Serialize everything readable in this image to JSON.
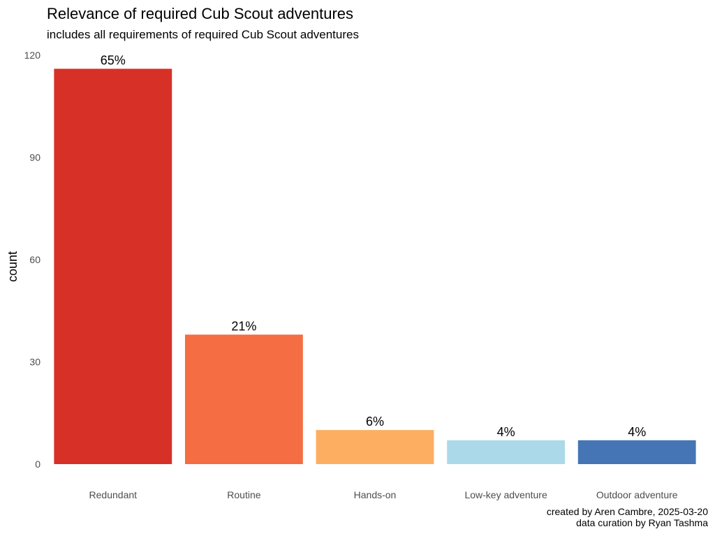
{
  "chart_data": {
    "type": "bar",
    "title": "Relevance of required Cub Scout adventures",
    "subtitle": "includes all requirements of required Cub Scout adventures",
    "xlabel": "",
    "ylabel": "count",
    "categories": [
      "Redundant",
      "Routine",
      "Hands-on",
      "Low-key adventure",
      "Outdoor adventure"
    ],
    "values": [
      116,
      38,
      10,
      7,
      7
    ],
    "data_labels": [
      "65%",
      "21%",
      "6%",
      "4%",
      "4%"
    ],
    "colors": [
      "#d73027",
      "#f46d43",
      "#fdae61",
      "#abd9e9",
      "#4575b4"
    ],
    "yticks": [
      0,
      30,
      60,
      90,
      120
    ],
    "ylim": [
      0,
      120
    ],
    "grid": false,
    "legend": "none",
    "caption": [
      "created by Aren Cambre, 2025-03-20",
      "data curation by Ryan Tashma"
    ]
  }
}
